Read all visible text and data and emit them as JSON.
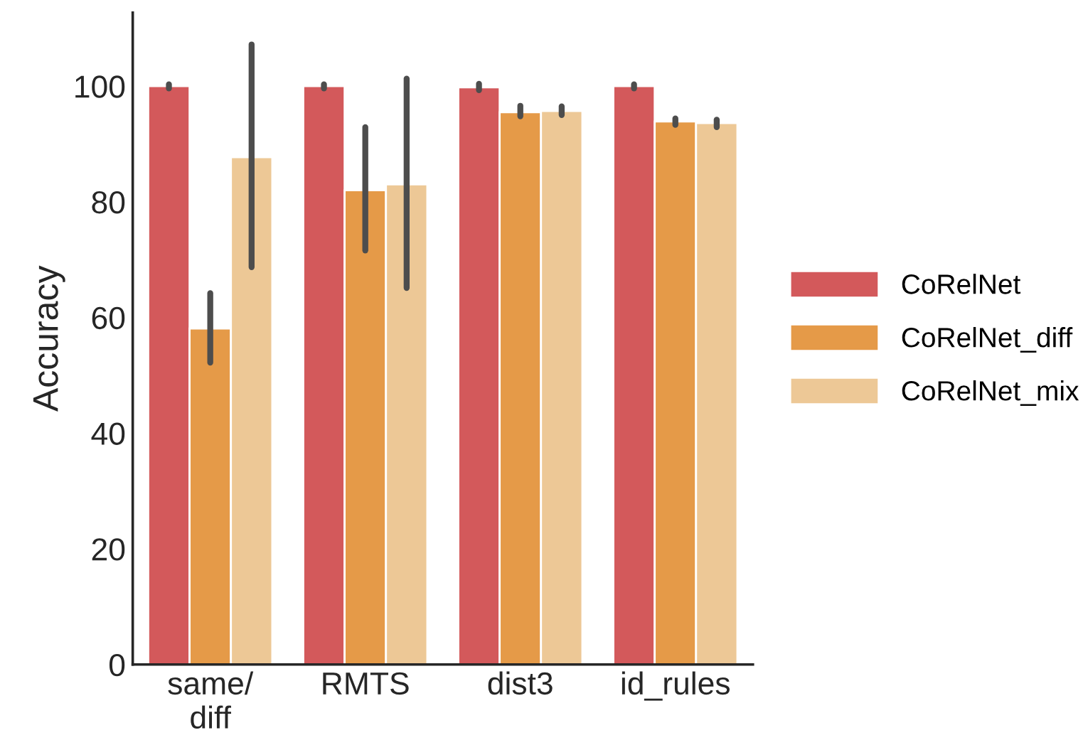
{
  "chart_data": {
    "type": "bar",
    "ylabel": "Accuracy",
    "categories": [
      "same/\ndiff",
      "RMTS",
      "dist3",
      "id_rules"
    ],
    "series": [
      {
        "name": "CoRelNet",
        "color": "#d3595b",
        "values": [
          100,
          100,
          99.8,
          100
        ],
        "errors": [
          [
            99.6,
            100.3
          ],
          [
            99.6,
            100.3
          ],
          [
            99.3,
            100.4
          ],
          [
            99.6,
            100.3
          ]
        ]
      },
      {
        "name": "CoRelNet_diff",
        "color": "#e59a48",
        "values": [
          58.1,
          82.0,
          95.5,
          93.9
        ],
        "errors": [
          [
            52.2,
            64.2
          ],
          [
            71.6,
            92.9
          ],
          [
            94.8,
            96.6
          ],
          [
            93.3,
            94.4
          ]
        ]
      },
      {
        "name": "CoRelNet_mix",
        "color": "#edc896",
        "values": [
          87.7,
          83.0,
          95.7,
          93.6
        ],
        "errors": [
          [
            68.7,
            107.2
          ],
          [
            65.1,
            101.3
          ],
          [
            95.0,
            96.5
          ],
          [
            92.9,
            94.2
          ]
        ]
      }
    ],
    "ylim": [
      0,
      112.7
    ],
    "yticks": [
      0,
      20,
      40,
      60,
      80,
      100
    ],
    "grid": false,
    "legend": "right"
  }
}
